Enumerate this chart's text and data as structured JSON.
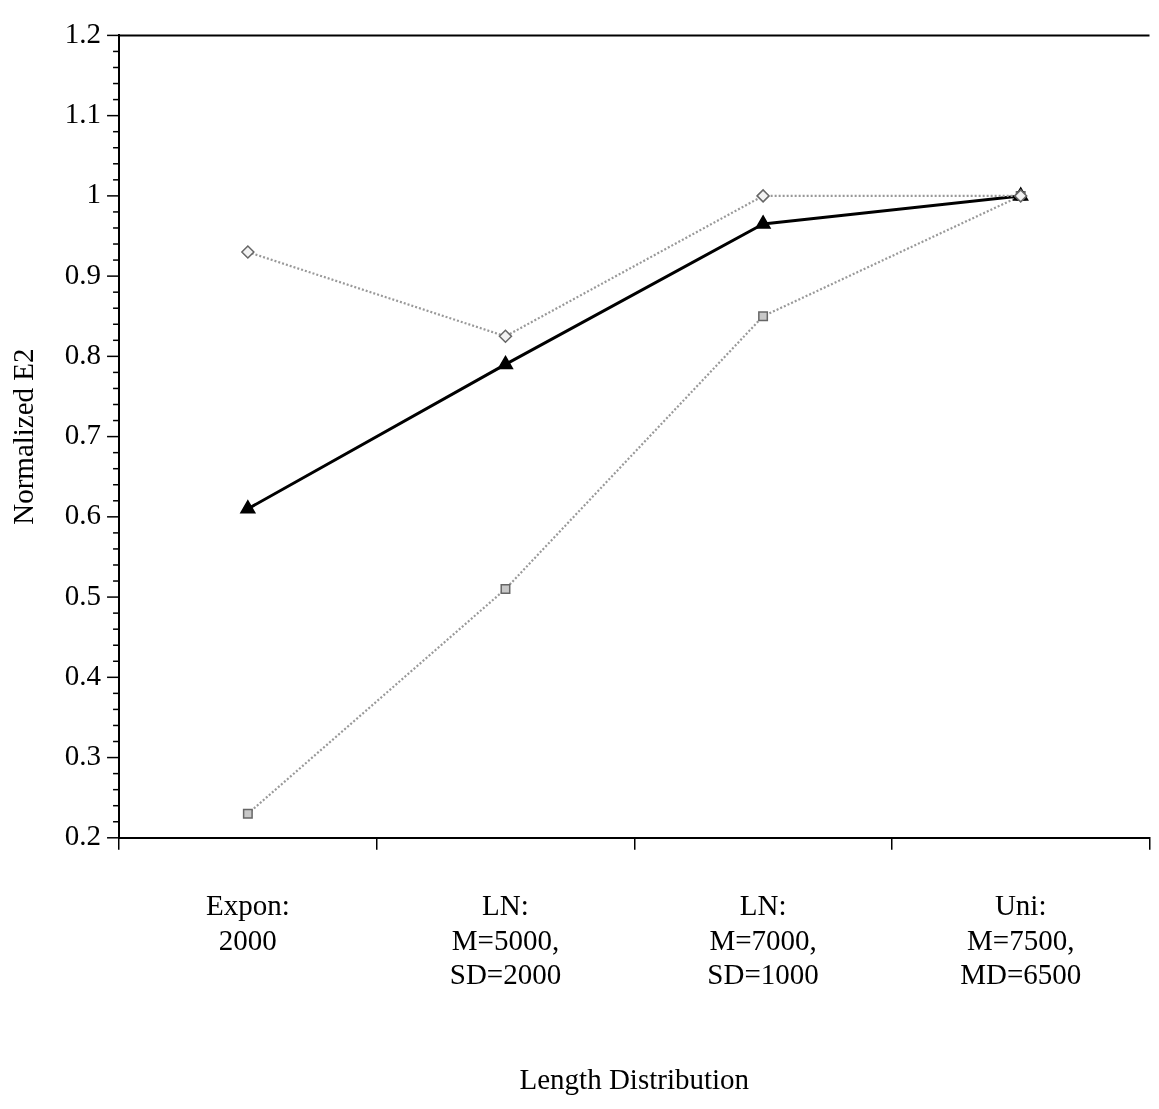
{
  "chart_data": {
    "type": "line",
    "xlabel": "Length Distribution",
    "ylabel": "Normalized E2",
    "categories": [
      "Expon: 2000",
      "LN: M=5000, SD=2000",
      "LN: M=7000, SD=1000",
      "Uni: M=7500, MD=6500"
    ],
    "series": [
      {
        "color": "#999999",
        "marker": "diamond",
        "line_style": "dotted",
        "values": [
          0.93,
          0.825,
          1.0,
          1.0
        ]
      },
      {
        "color": "#000000",
        "marker": "triangle",
        "line_style": "solid",
        "values": [
          0.61,
          0.79,
          0.965,
          1.0
        ]
      },
      {
        "color": "#999999",
        "marker": "square",
        "line_style": "dotted",
        "values": [
          0.23,
          0.51,
          0.85,
          1.0
        ]
      }
    ],
    "ylim": [
      0.2,
      1.2
    ],
    "yticks": [
      0.2,
      {
        "value": 0.22,
        "label": null
      },
      {
        "value": 0.24,
        "label": null
      },
      {
        "value": 0.26,
        "label": null
      },
      {
        "value": 0.28,
        "label": null
      },
      0.3,
      {
        "value": 0.32,
        "label": null
      },
      {
        "value": 0.34,
        "label": null
      },
      {
        "value": 0.36,
        "label": null
      },
      {
        "value": 0.38,
        "label": null
      },
      0.4,
      {
        "value": 0.42,
        "label": null
      },
      {
        "value": 0.44,
        "label": null
      },
      {
        "value": 0.46,
        "label": null
      },
      {
        "value": 0.48,
        "label": null
      },
      0.5,
      {
        "value": 0.52,
        "label": null
      },
      {
        "value": 0.54,
        "label": null
      },
      {
        "value": 0.56,
        "label": null
      },
      {
        "value": 0.58,
        "label": null
      },
      0.6,
      {
        "value": 0.62,
        "label": null
      },
      {
        "value": 0.64,
        "label": null
      },
      {
        "value": 0.66,
        "label": null
      },
      {
        "value": 0.68,
        "label": null
      },
      0.7,
      {
        "value": 0.72,
        "label": null
      },
      {
        "value": 0.74,
        "label": null
      },
      {
        "value": 0.76,
        "label": null
      },
      {
        "value": 0.78,
        "label": null
      },
      0.8,
      {
        "value": 0.82,
        "label": null
      },
      {
        "value": 0.84,
        "label": null
      },
      {
        "value": 0.86,
        "label": null
      },
      {
        "value": 0.88,
        "label": null
      },
      0.9,
      {
        "value": 0.92,
        "label": null
      },
      {
        "value": 0.94,
        "label": null
      },
      {
        "value": 0.96,
        "label": null
      },
      {
        "value": 0.98,
        "label": null
      },
      1,
      {
        "value": 1.02,
        "label": null
      },
      {
        "value": 1.04,
        "label": null
      },
      {
        "value": 1.06,
        "label": null
      },
      {
        "value": 1.08,
        "label": null
      },
      1.1,
      {
        "value": 1.12,
        "label": null
      },
      {
        "value": 1.14,
        "label": null
      },
      {
        "value": 1.16,
        "label": null
      },
      {
        "value": 1.18,
        "label": null
      },
      1.2
    ]
  }
}
